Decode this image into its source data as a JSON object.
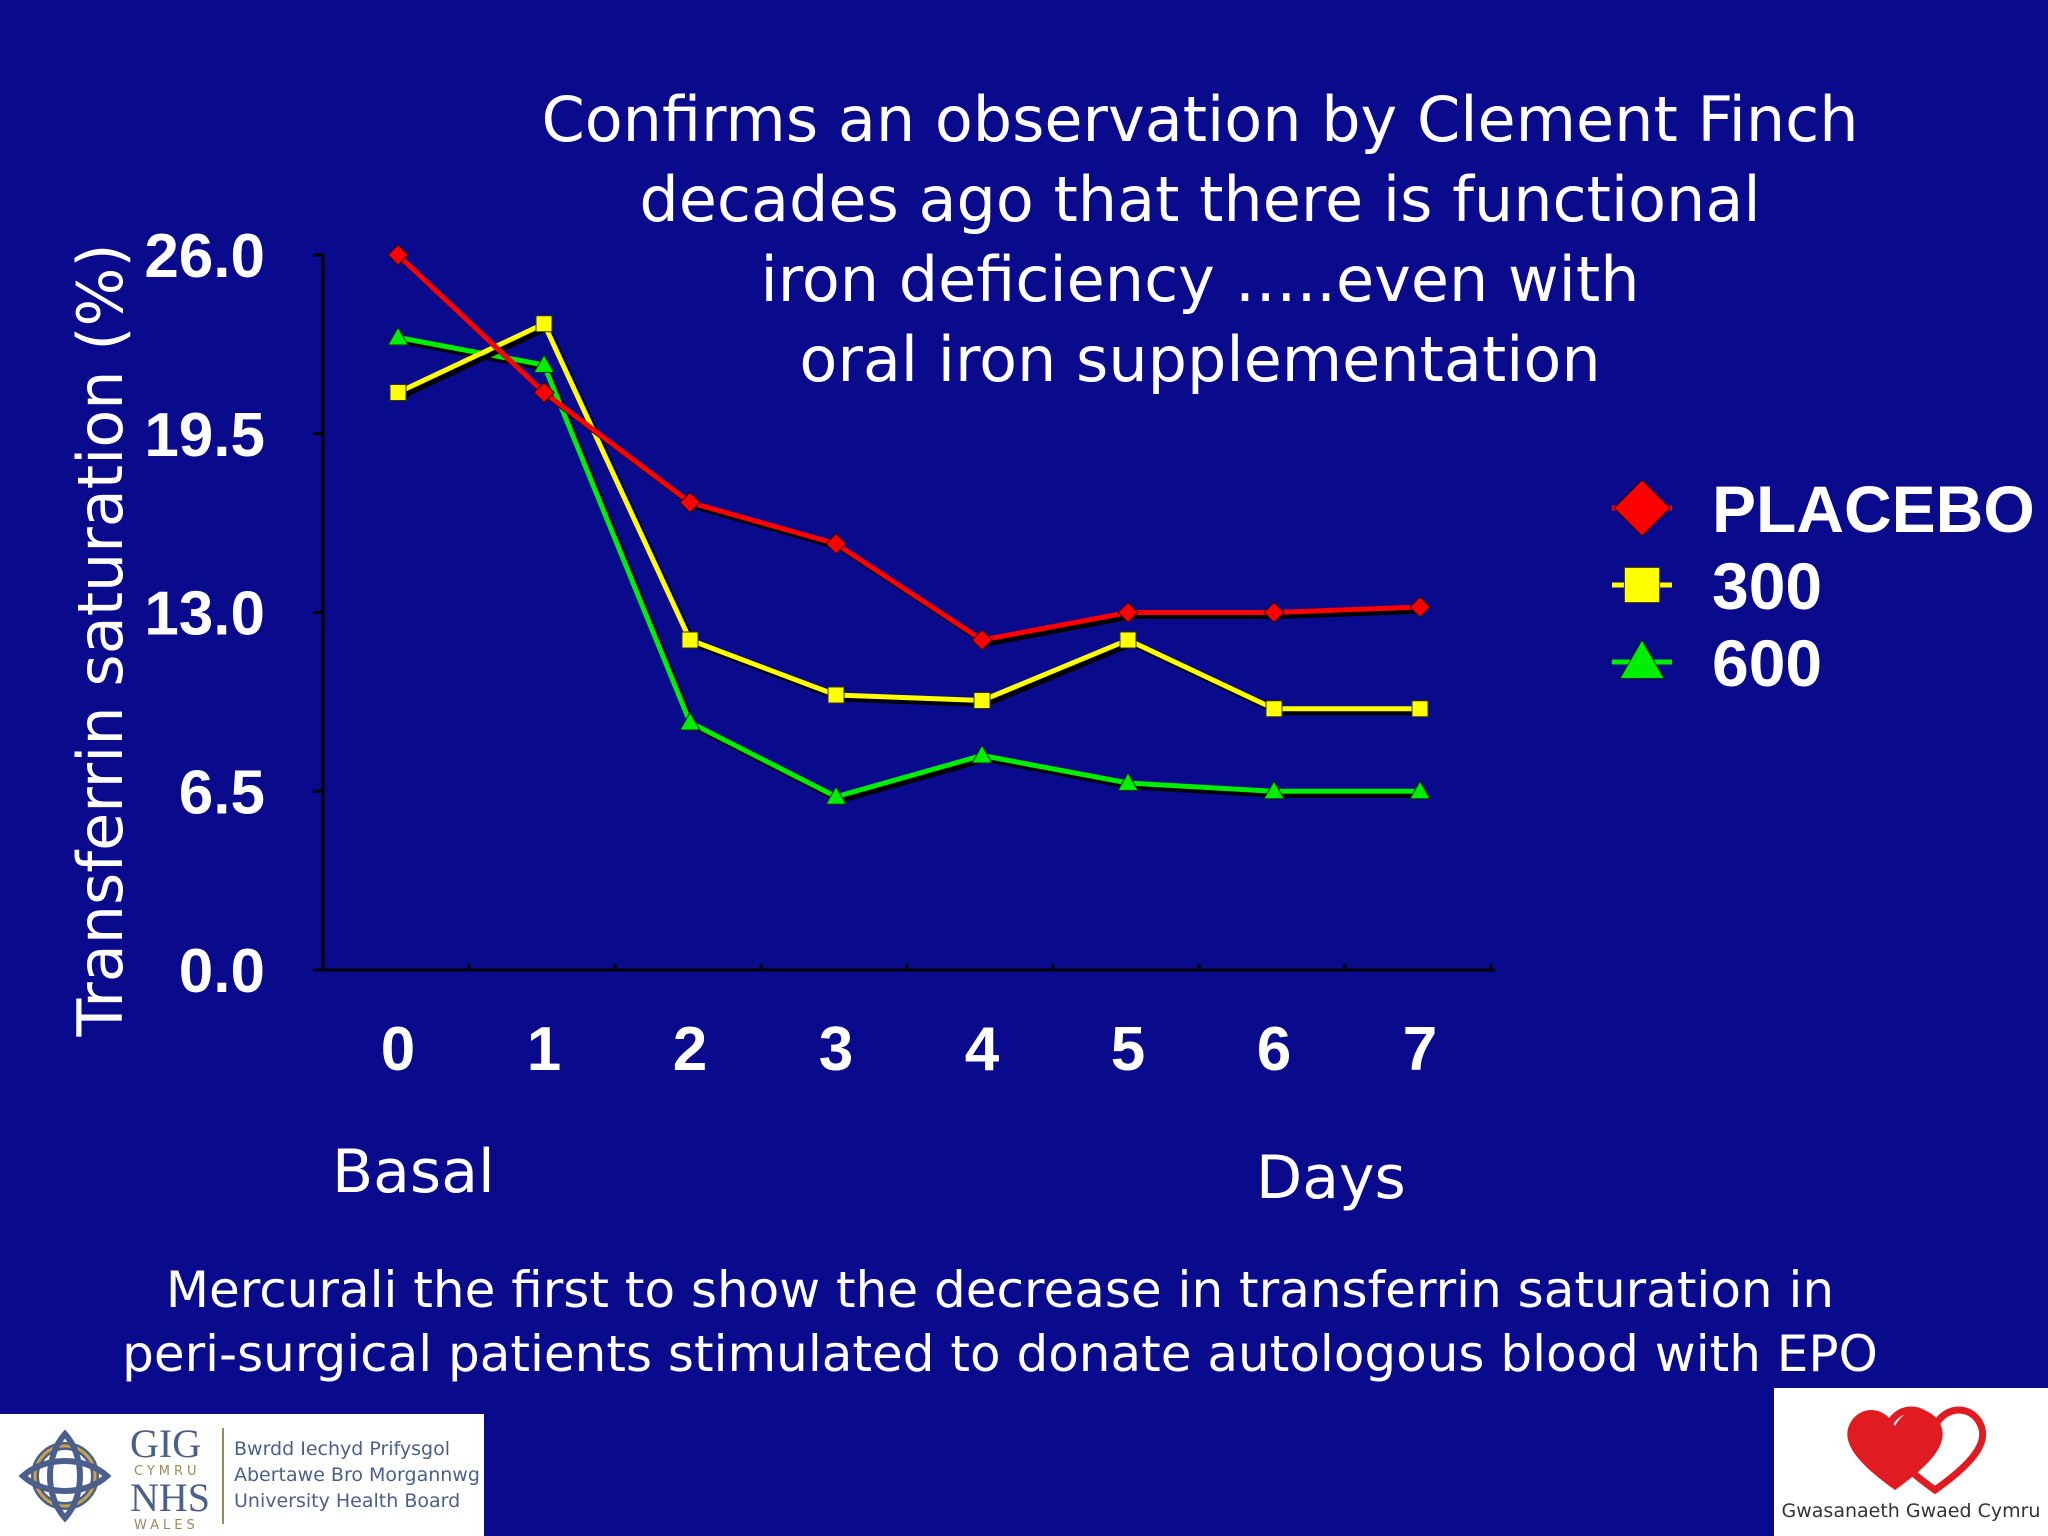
{
  "headline": {
    "lines": [
      "Confirms an observation by Clement Finch",
      "decades ago that there is functional",
      "iron deficiency …..even with",
      "oral iron supplementation"
    ]
  },
  "chart_data": {
    "type": "line",
    "ylabel": "Transferrin saturation (%)",
    "xlabel": "Days",
    "x_sublabel": "Basal",
    "categories": [
      "0",
      "1",
      "2",
      "3",
      "4",
      "5",
      "6",
      "7"
    ],
    "y_ticks": [
      "0.0",
      "6.5",
      "13.0",
      "19.5",
      "26.0"
    ],
    "ylim": [
      0,
      26
    ],
    "grid": false,
    "legend_position": "right",
    "series": [
      {
        "name": "PLACEBO",
        "color": "#ff0000",
        "marker": "diamond",
        "values": [
          26.0,
          21.0,
          17.0,
          15.5,
          12.0,
          13.0,
          13.0,
          13.2
        ]
      },
      {
        "name": "300",
        "color": "#ffff00",
        "marker": "square",
        "values": [
          21.0,
          23.5,
          12.0,
          10.0,
          9.8,
          12.0,
          9.5,
          9.5
        ]
      },
      {
        "name": "600",
        "color": "#00ee00",
        "marker": "triangle",
        "values": [
          23.0,
          22.0,
          9.0,
          6.3,
          7.8,
          6.8,
          6.5,
          6.5
        ]
      }
    ]
  },
  "footnote": {
    "lines": [
      "Mercurali the first to show the decrease in transferrin saturation in",
      "peri-surgical patients stimulated to donate autologous blood with EPO"
    ]
  },
  "logos": {
    "left": {
      "gig": "GIG",
      "cymru": "CYMRU",
      "nhs": "NHS",
      "wales": "WALES",
      "board_lines": [
        "Bwrdd Iechyd Prifysgol",
        "Abertawe Bro Morgannwg",
        "University Health Board"
      ]
    },
    "right": {
      "caption": "Gwasanaeth Gwaed Cymru"
    }
  }
}
